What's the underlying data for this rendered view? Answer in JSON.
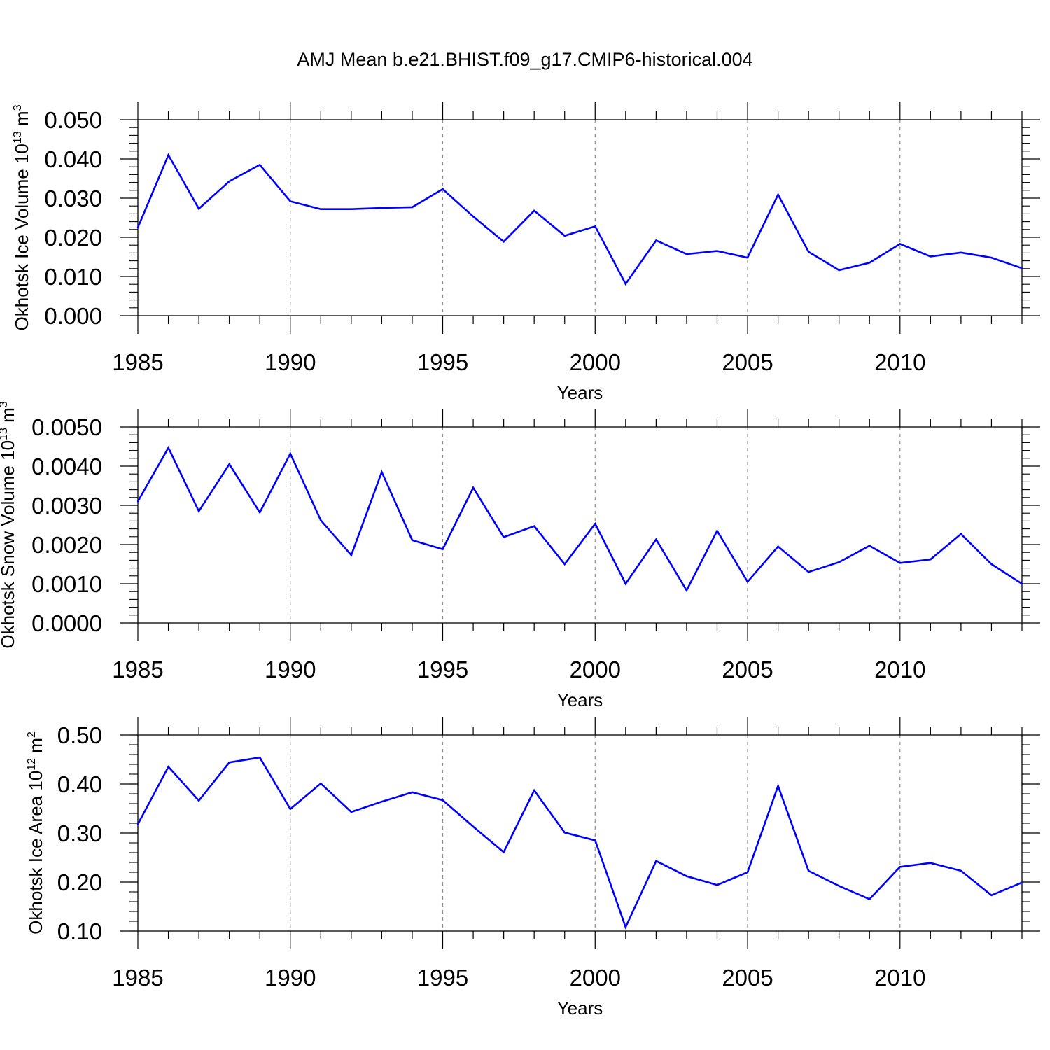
{
  "title": "AMJ Mean b.e21.BHIST.f09_g17.CMIP6-historical.004",
  "colors": {
    "line": "#0000ff",
    "axis": "#000000",
    "grid": "#8c8c8c"
  },
  "chart_data": [
    {
      "type": "line",
      "title": "AMJ Mean b.e21.BHIST.f09_g17.CMIP6-historical.004",
      "xlabel": "Years",
      "ylabel": {
        "text": "Okhotsk Ice Volume 10",
        "exp": "13",
        "unit": " m",
        "unit_exp": "3"
      },
      "xlim": [
        1985,
        2014
      ],
      "ylim": [
        0.0,
        0.05
      ],
      "xticks": [
        "1985",
        "1990",
        "1995",
        "2000",
        "2005",
        "2010"
      ],
      "yticks": [
        [
          "0.000",
          0.0
        ],
        [
          "0.010",
          0.01
        ],
        [
          "0.020",
          0.02
        ],
        [
          "0.030",
          0.03
        ],
        [
          "0.040",
          0.04
        ],
        [
          "0.050",
          0.05
        ]
      ],
      "grid": "vertical dashed at labeled years",
      "x": [
        1985,
        1986,
        1987,
        1988,
        1989,
        1990,
        1991,
        1992,
        1993,
        1994,
        1995,
        1996,
        1997,
        1998,
        1999,
        2000,
        2001,
        2002,
        2003,
        2004,
        2005,
        2006,
        2007,
        2008,
        2009,
        2010,
        2011,
        2012,
        2013,
        2014
      ],
      "values": [
        0.0225,
        0.041,
        0.0273,
        0.0343,
        0.0385,
        0.0292,
        0.0272,
        0.0272,
        0.0275,
        0.0277,
        0.0323,
        0.0253,
        0.0189,
        0.0268,
        0.0204,
        0.0228,
        0.0081,
        0.0192,
        0.0157,
        0.0165,
        0.0148,
        0.0309,
        0.0163,
        0.0116,
        0.0135,
        0.0183,
        0.0151,
        0.0161,
        0.0148,
        0.0121
      ]
    },
    {
      "type": "line",
      "xlabel": "Years",
      "ylabel": {
        "text": "Okhotsk Snow Volume 10",
        "exp": "13",
        "unit": " m",
        "unit_exp": "3"
      },
      "xlim": [
        1985,
        2014
      ],
      "ylim": [
        0.0,
        0.005
      ],
      "xticks": [
        "1985",
        "1990",
        "1995",
        "2000",
        "2005",
        "2010"
      ],
      "yticks": [
        [
          "0.0000",
          0.0
        ],
        [
          "0.0010",
          0.001
        ],
        [
          "0.0020",
          0.002
        ],
        [
          "0.0030",
          0.003
        ],
        [
          "0.0040",
          0.004
        ],
        [
          "0.0050",
          0.005
        ]
      ],
      "grid": "vertical dashed at labeled years",
      "x": [
        1985,
        1986,
        1987,
        1988,
        1989,
        1990,
        1991,
        1992,
        1993,
        1994,
        1995,
        1996,
        1997,
        1998,
        1999,
        2000,
        2001,
        2002,
        2003,
        2004,
        2005,
        2006,
        2007,
        2008,
        2009,
        2010,
        2011,
        2012,
        2013,
        2014
      ],
      "values": [
        0.0031,
        0.00447,
        0.00285,
        0.00405,
        0.00282,
        0.00432,
        0.00262,
        0.00173,
        0.00385,
        0.00211,
        0.00188,
        0.00345,
        0.00219,
        0.00247,
        0.0015,
        0.00253,
        0.001,
        0.00213,
        0.00083,
        0.00235,
        0.00105,
        0.00195,
        0.0013,
        0.00155,
        0.00197,
        0.00153,
        0.00162,
        0.00227,
        0.0015,
        0.001
      ]
    },
    {
      "type": "line",
      "xlabel": "Years",
      "ylabel": {
        "text": "Okhotsk Ice Area 10",
        "exp": "12",
        "unit": " m",
        "unit_exp": "2"
      },
      "xlim": [
        1985,
        2014
      ],
      "ylim": [
        0.1,
        0.5
      ],
      "xticks": [
        "1985",
        "1990",
        "1995",
        "2000",
        "2005",
        "2010"
      ],
      "yticks": [
        [
          "0.10",
          0.1
        ],
        [
          "0.20",
          0.2
        ],
        [
          "0.30",
          0.3
        ],
        [
          "0.40",
          0.4
        ],
        [
          "0.50",
          0.5
        ]
      ],
      "grid": "vertical dashed at labeled years",
      "x": [
        1985,
        1986,
        1987,
        1988,
        1989,
        1990,
        1991,
        1992,
        1993,
        1994,
        1995,
        1996,
        1997,
        1998,
        1999,
        2000,
        2001,
        2002,
        2003,
        2004,
        2005,
        2006,
        2007,
        2008,
        2009,
        2010,
        2011,
        2012,
        2013,
        2014
      ],
      "values": [
        0.318,
        0.435,
        0.366,
        0.444,
        0.454,
        0.349,
        0.401,
        0.343,
        0.364,
        0.383,
        0.367,
        0.313,
        0.261,
        0.387,
        0.301,
        0.285,
        0.108,
        0.243,
        0.212,
        0.194,
        0.22,
        0.396,
        0.223,
        0.192,
        0.165,
        0.231,
        0.239,
        0.223,
        0.173,
        0.199
      ]
    }
  ]
}
